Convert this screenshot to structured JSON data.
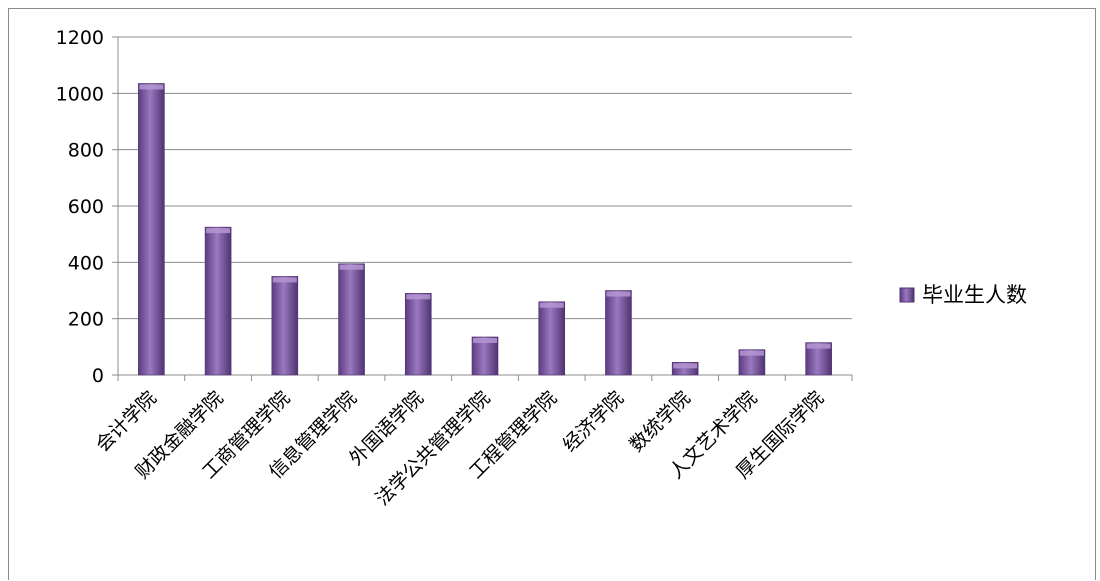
{
  "chart_data": {
    "type": "bar",
    "title": "",
    "xlabel": "",
    "ylabel": "",
    "categories": [
      "会计学院",
      "财政金融学院",
      "工商管理学院",
      "信息管理学院",
      "外国语学院",
      "法学公共管理学院",
      "工程管理学院",
      "经济学院",
      "数统学院",
      "人文艺术学院",
      "厚生国际学院"
    ],
    "series": [
      {
        "name": "毕业生人数",
        "values": [
          1035,
          525,
          350,
          395,
          290,
          135,
          260,
          300,
          45,
          90,
          115
        ]
      }
    ],
    "ylim": [
      0,
      1200
    ],
    "yticks": [
      0,
      200,
      400,
      600,
      800,
      1000,
      1200
    ],
    "yticklabels": [
      "0",
      "200",
      "400",
      "600",
      "800",
      "1000",
      "1200"
    ],
    "grid": true,
    "legend_position": "right",
    "colors": {
      "bar": "#7d5a9e",
      "bar_light": "#b596d2",
      "bar_dark": "#4f3370",
      "grid": "#8c8c8c"
    }
  }
}
